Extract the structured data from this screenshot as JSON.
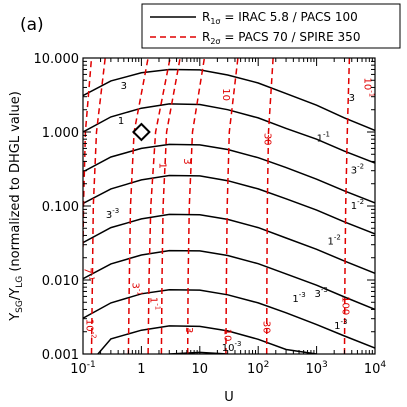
{
  "chart_data": {
    "type": "line",
    "panel_label": "(a)",
    "xlabel": "U",
    "ylabel": "Y_SG/Y_LG (normalized to DHGL value)",
    "ylabel_parts": {
      "main": "Y",
      "sub1": "SG",
      "mid": "/Y",
      "sub2": "LG",
      "rest": " (normalized to DHGL value)"
    },
    "xscale": "log",
    "yscale": "log",
    "xlim": [
      0.1,
      10000
    ],
    "ylim": [
      0.001,
      10
    ],
    "x_ticks": [
      {
        "value": 0.1,
        "base": "10",
        "exp": "-1"
      },
      {
        "value": 1,
        "base": "1",
        "exp": ""
      },
      {
        "value": 10,
        "base": "10",
        "exp": ""
      },
      {
        "value": 100,
        "base": "10",
        "exp": "2"
      },
      {
        "value": 1000,
        "base": "10",
        "exp": "3"
      },
      {
        "value": 10000,
        "base": "10",
        "exp": "4"
      }
    ],
    "y_ticks": [
      {
        "value": 0.001,
        "label": "0.001"
      },
      {
        "value": 0.01,
        "label": "0.010"
      },
      {
        "value": 0.1,
        "label": "0.100"
      },
      {
        "value": 1,
        "label": "1.000"
      },
      {
        "value": 10,
        "label": "10.000"
      }
    ],
    "legend": {
      "position": "top-right",
      "entries": [
        {
          "id": "R1",
          "main": "R",
          "sub": "1σ",
          "rest": " = IRAC 5.8 / PACS 100",
          "color": "#000000",
          "dash": "solid"
        },
        {
          "id": "R2",
          "main": "R",
          "sub": "2σ",
          "rest": " = PACS 70 / SPIRE 350",
          "color": "#e00000",
          "dash": "dashed"
        }
      ]
    },
    "series": [
      {
        "group": "R1",
        "label": "3",
        "points": [
          [
            0.1,
            3.1
          ],
          [
            0.3,
            4.9
          ],
          [
            1,
            6.3
          ],
          [
            3,
            7.0
          ],
          [
            10,
            6.9
          ],
          [
            30,
            5.9
          ],
          [
            100,
            4.6
          ],
          [
            300,
            3.3
          ],
          [
            1000,
            2.3
          ],
          [
            3000,
            1.55
          ],
          [
            10000,
            1.05
          ]
        ]
      },
      {
        "group": "R1",
        "label": "1",
        "points": [
          [
            0.1,
            1.0
          ],
          [
            0.3,
            1.6
          ],
          [
            1,
            2.1
          ],
          [
            3,
            2.4
          ],
          [
            10,
            2.35
          ],
          [
            30,
            2.0
          ],
          [
            100,
            1.55
          ],
          [
            300,
            1.12
          ],
          [
            1000,
            0.8
          ],
          [
            3000,
            0.55
          ],
          [
            10000,
            0.38
          ]
        ]
      },
      {
        "group": "R1",
        "label": "3 10^-1",
        "points": [
          [
            0.1,
            0.29
          ],
          [
            0.3,
            0.46
          ],
          [
            1,
            0.6
          ],
          [
            3,
            0.68
          ],
          [
            10,
            0.67
          ],
          [
            30,
            0.58
          ],
          [
            100,
            0.45
          ],
          [
            300,
            0.33
          ],
          [
            1000,
            0.23
          ],
          [
            3000,
            0.16
          ],
          [
            10000,
            0.11
          ]
        ]
      },
      {
        "group": "R1",
        "label": "1 10^-1",
        "points": [
          [
            0.1,
            0.108
          ],
          [
            0.3,
            0.17
          ],
          [
            1,
            0.225
          ],
          [
            3,
            0.258
          ],
          [
            10,
            0.255
          ],
          [
            30,
            0.22
          ],
          [
            100,
            0.17
          ],
          [
            300,
            0.125
          ],
          [
            1000,
            0.088
          ],
          [
            3000,
            0.061
          ],
          [
            10000,
            0.042
          ]
        ]
      },
      {
        "group": "R1",
        "label": "3 10^-2",
        "points": [
          [
            0.1,
            0.032
          ],
          [
            0.3,
            0.051
          ],
          [
            1,
            0.067
          ],
          [
            3,
            0.077
          ],
          [
            10,
            0.076
          ],
          [
            30,
            0.066
          ],
          [
            100,
            0.051
          ],
          [
            300,
            0.037
          ],
          [
            1000,
            0.026
          ],
          [
            3000,
            0.018
          ],
          [
            10000,
            0.0123
          ]
        ]
      },
      {
        "group": "R1",
        "label": "1 10^-2",
        "points": [
          [
            0.1,
            0.0104
          ],
          [
            0.3,
            0.0165
          ],
          [
            1,
            0.0218
          ],
          [
            3,
            0.025
          ],
          [
            10,
            0.0247
          ],
          [
            30,
            0.0214
          ],
          [
            100,
            0.0166
          ],
          [
            300,
            0.0121
          ],
          [
            1000,
            0.0085
          ],
          [
            3000,
            0.0059
          ],
          [
            10000,
            0.004
          ]
        ]
      },
      {
        "group": "R1",
        "label": "3 10^-3",
        "points": [
          [
            0.1,
            0.00305
          ],
          [
            0.3,
            0.0049
          ],
          [
            1,
            0.0065
          ],
          [
            3,
            0.0074
          ],
          [
            10,
            0.0073
          ],
          [
            30,
            0.0063
          ],
          [
            100,
            0.0049
          ],
          [
            300,
            0.0036
          ],
          [
            1000,
            0.0025
          ],
          [
            3000,
            0.00175
          ],
          [
            10000,
            0.0012
          ]
        ]
      },
      {
        "group": "R1",
        "label": "1 10^-3",
        "points": [
          [
            0.18,
            0.001
          ],
          [
            0.3,
            0.0016
          ],
          [
            1,
            0.0021
          ],
          [
            3,
            0.0024
          ],
          [
            10,
            0.00236
          ],
          [
            30,
            0.00205
          ],
          [
            100,
            0.00158
          ],
          [
            300,
            0.00115
          ],
          [
            1000,
            0.001
          ]
        ]
      },
      {
        "group": "R1",
        "label": "3 10^-4",
        "points": [
          [
            3,
            0.001
          ],
          [
            10,
            0.00105
          ],
          [
            30,
            0.001
          ]
        ]
      },
      {
        "group": "R2",
        "label": "10^-2",
        "points": [
          [
            0.14,
            0.001
          ],
          [
            0.145,
            0.01
          ],
          [
            0.15,
            0.1
          ],
          [
            0.17,
            1.0
          ],
          [
            0.24,
            10
          ]
        ]
      },
      {
        "group": "R2",
        "label": "3 10^-2",
        "points": [
          [
            0.1,
            0.028
          ],
          [
            0.102,
            0.1
          ],
          [
            0.11,
            1.0
          ],
          [
            0.14,
            10
          ]
        ]
      },
      {
        "group": "R2",
        "label": "1 10^-1",
        "points": [
          [
            0.6,
            0.001
          ],
          [
            0.62,
            0.01
          ],
          [
            0.65,
            0.1
          ],
          [
            0.75,
            1.0
          ],
          [
            1.3,
            10
          ]
        ]
      },
      {
        "group": "R2",
        "label": "3 10^-1",
        "points": [
          [
            1.3,
            0.001
          ],
          [
            1.35,
            0.01
          ],
          [
            1.45,
            0.1
          ],
          [
            1.75,
            1.0
          ],
          [
            3.1,
            10
          ]
        ]
      },
      {
        "group": "R2",
        "label": "1",
        "points": [
          [
            2.2,
            0.001
          ],
          [
            2.25,
            0.01
          ],
          [
            2.35,
            0.1
          ],
          [
            2.7,
            1.0
          ],
          [
            4.6,
            10
          ]
        ]
      },
      {
        "group": "R2",
        "label": "3",
        "points": [
          [
            6.2,
            0.001
          ],
          [
            6.3,
            0.01
          ],
          [
            6.6,
            0.1
          ],
          [
            7.5,
            1.0
          ],
          [
            12,
            10
          ]
        ]
      },
      {
        "group": "R2",
        "label": "10",
        "points": [
          [
            28,
            0.001
          ],
          [
            28.5,
            0.01
          ],
          [
            29.5,
            0.1
          ],
          [
            32,
            1.0
          ],
          [
            45,
            10
          ]
        ]
      },
      {
        "group": "R2",
        "label": "30",
        "points": [
          [
            140,
            0.001
          ],
          [
            141,
            0.01
          ],
          [
            143,
            0.1
          ],
          [
            150,
            1.0
          ],
          [
            180,
            10
          ]
        ]
      },
      {
        "group": "R2",
        "label": "100",
        "points": [
          [
            3000,
            0.001
          ],
          [
            3050,
            0.01
          ],
          [
            3150,
            0.1
          ],
          [
            3350,
            1.0
          ],
          [
            3650,
            10
          ]
        ]
      }
    ],
    "contour_labels": [
      {
        "group": "R1",
        "sig": "3",
        "exp": "",
        "x": 4000,
        "y": 2.9
      },
      {
        "group": "R1",
        "sig": "1",
        "exp": "-1",
        "x": 1300,
        "y": 0.82
      },
      {
        "group": "R1",
        "sig": "3",
        "exp": "-2",
        "x": 5000,
        "y": 0.3
      },
      {
        "group": "R1",
        "sig": "1",
        "exp": "-2",
        "x": 5000,
        "y": 0.1
      },
      {
        "group": "R1",
        "sig": "1",
        "exp": "",
        "x": 0.45,
        "y": 1.4
      },
      {
        "group": "R1",
        "sig": "3",
        "exp": "",
        "x": 0.5,
        "y": 4.2
      },
      {
        "group": "R1",
        "sig": "3",
        "exp": "-3",
        "x": 0.32,
        "y": 0.075
      },
      {
        "group": "R1",
        "sig": "1",
        "exp": "-2",
        "x": 2000,
        "y": 0.033
      },
      {
        "group": "R1",
        "sig": "3",
        "exp": "-3",
        "x": 1200,
        "y": 0.0065
      },
      {
        "group": "R1",
        "sig": "1",
        "exp": "-3",
        "x": 2600,
        "y": 0.0024
      },
      {
        "group": "R1",
        "sig": "1",
        "exp": "-3",
        "x": 500,
        "y": 0.0055
      },
      {
        "group": "R1",
        "sig": "10",
        "exp": "-3",
        "x": 35,
        "y": 0.0012
      },
      {
        "group": "R2",
        "sig": "10",
        "exp": "-1",
        "x": 7500,
        "y": 4.0
      },
      {
        "group": "R2",
        "sig": "10",
        "exp": "",
        "x": 28,
        "y": 3.2
      },
      {
        "group": "R2",
        "sig": "30",
        "exp": "",
        "x": 145,
        "y": 0.8
      },
      {
        "group": "R2",
        "sig": "3",
        "exp": "",
        "x": 6,
        "y": 0.4
      },
      {
        "group": "R2",
        "sig": "1",
        "exp": "",
        "x": 2.3,
        "y": 0.35
      },
      {
        "group": "R2",
        "sig": "3",
        "exp": "-1",
        "x": 0.8,
        "y": 0.0075
      },
      {
        "group": "R2",
        "sig": "1",
        "exp": "-1",
        "x": 1.6,
        "y": 0.0048
      },
      {
        "group": "R2",
        "sig": "7",
        "exp": "-1",
        "x": 0.12,
        "y": 0.012
      },
      {
        "group": "R2",
        "sig": "3",
        "exp": "",
        "x": 6.5,
        "y": 0.0021
      },
      {
        "group": "R2",
        "sig": "10",
        "exp": "",
        "x": 30,
        "y": 0.0018
      },
      {
        "group": "R2",
        "sig": "30",
        "exp": "",
        "x": 140,
        "y": 0.0023
      },
      {
        "group": "R2",
        "sig": "100",
        "exp": "",
        "x": 3100,
        "y": 0.0045
      },
      {
        "group": "R2",
        "sig": "10",
        "exp": "-2",
        "x": 0.13,
        "y": 0.0022
      }
    ],
    "marker": {
      "shape": "diamond",
      "x": 1,
      "y": 1,
      "color": "#000000"
    }
  }
}
